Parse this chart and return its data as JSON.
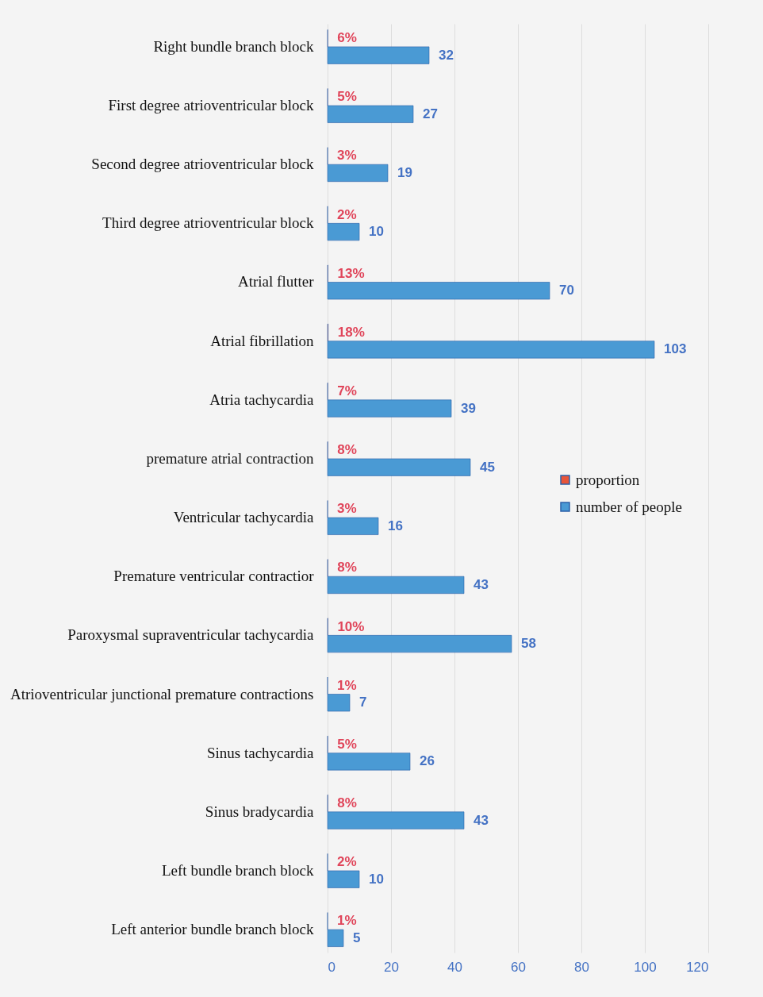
{
  "chart_data": {
    "type": "bar",
    "orientation": "horizontal",
    "categories": [
      "Right bundle branch block",
      "First degree atrioventricular block",
      "Second degree atrioventricular block",
      "Third degree atrioventricular block",
      "Atrial flutter",
      "Atrial fibrillation",
      "Atria tachycardia",
      "premature atrial contraction",
      "Ventricular tachycardia",
      "Premature ventricular contractior",
      "Paroxysmal supraventricular tachycardia",
      "Atrioventricular junctional premature contractions",
      "Sinus tachycardia",
      "Sinus bradycardia",
      "Left bundle branch block",
      "Left anterior bundle branch block"
    ],
    "series": [
      {
        "name": "proportion",
        "color": "#e8553a",
        "values": [
          0.06,
          0.05,
          0.03,
          0.02,
          0.13,
          0.18,
          0.07,
          0.08,
          0.03,
          0.08,
          0.1,
          0.01,
          0.05,
          0.08,
          0.02,
          0.01
        ],
        "value_labels": [
          "6%",
          "5%",
          "3%",
          "2%",
          "13%",
          "18%",
          "7%",
          "8%",
          "3%",
          "8%",
          "10%",
          "1%",
          "5%",
          "8%",
          "2%",
          "1%"
        ]
      },
      {
        "name": "number of people",
        "color": "#4a9ad4",
        "values": [
          32,
          27,
          19,
          10,
          70,
          103,
          39,
          45,
          16,
          43,
          58,
          7,
          26,
          43,
          10,
          5
        ],
        "value_labels": [
          "32",
          "27",
          "19",
          "10",
          "70",
          "103",
          "39",
          "45",
          "16",
          "43",
          "58",
          "7",
          "26",
          "43",
          "10",
          "5"
        ]
      }
    ],
    "xlim": [
      0,
      120
    ],
    "xticks": [
      0,
      20,
      40,
      60,
      80,
      100,
      120
    ],
    "grid": "x",
    "legend": "right"
  }
}
